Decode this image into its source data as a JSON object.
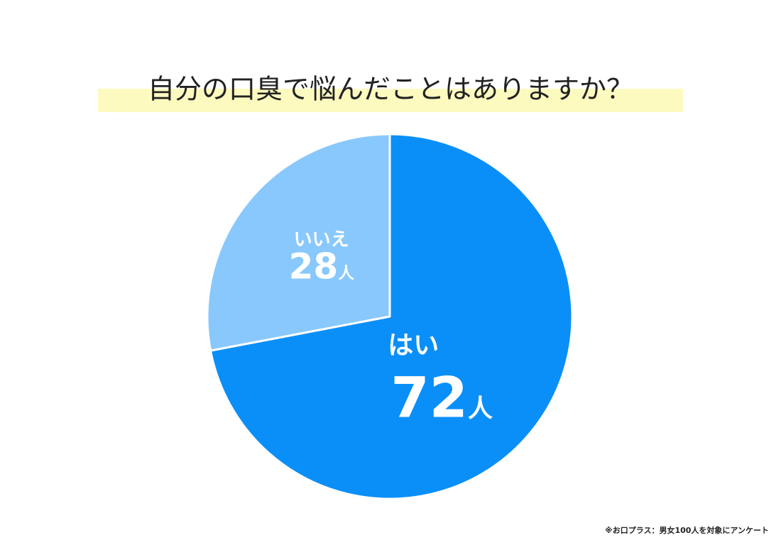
{
  "chart_data": {
    "type": "pie",
    "title": "自分の口臭で悩んだことはありますか？",
    "categories": [
      "はい",
      "いいえ"
    ],
    "values": [
      72,
      28
    ],
    "value_labels": [
      "72人",
      "28人"
    ],
    "colors": [
      "#0a8ff8",
      "#89c8fc"
    ],
    "note": "※お口プラス：男女100人を対象にアンケート"
  }
}
